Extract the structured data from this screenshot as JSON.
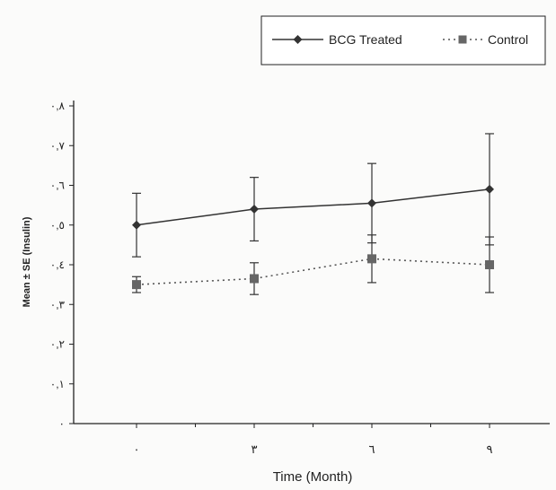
{
  "chart_data": {
    "type": "line",
    "title": "",
    "xlabel": "Time (Month)",
    "ylabel": "Mean ± SE (Insulin)",
    "x_tick_labels": [
      "٠",
      "٣",
      "٦",
      "٩"
    ],
    "y_tick_labels": [
      "٠",
      "٠,١",
      "٠,٢",
      "٠,٣",
      "٠,٤",
      "٠,٥",
      "٠,٦",
      "٠,٧",
      "٠,٨"
    ],
    "ylim": [
      0,
      0.8
    ],
    "x": [
      0,
      3,
      6,
      9
    ],
    "series": [
      {
        "name": "BCG Treated",
        "values": [
          0.5,
          0.54,
          0.555,
          0.59
        ],
        "errors": [
          0.08,
          0.08,
          0.1,
          0.14
        ],
        "marker": "diamond",
        "line_style": "solid",
        "color": "#333333"
      },
      {
        "name": "Control",
        "values": [
          0.35,
          0.365,
          0.415,
          0.4
        ],
        "errors": [
          0.02,
          0.04,
          0.06,
          0.07
        ],
        "marker": "square",
        "line_style": "dotted",
        "color": "#555555"
      }
    ],
    "grid": false,
    "legend_position": "top-right"
  }
}
